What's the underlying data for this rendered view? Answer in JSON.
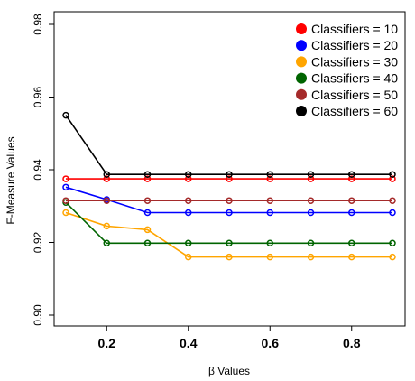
{
  "chart_data": {
    "type": "line",
    "title": "",
    "xlabel": "β Values",
    "ylabel": "F-Measure Values",
    "xlim": [
      0.1,
      0.9
    ],
    "ylim": [
      0.9,
      0.98
    ],
    "x": [
      0.1,
      0.2,
      0.3,
      0.4,
      0.5,
      0.6,
      0.7,
      0.8,
      0.9
    ],
    "x_ticks": [
      0.2,
      0.4,
      0.6,
      0.8
    ],
    "x_tick_labels": [
      "0.2",
      "0.4",
      "0.6",
      "0.8"
    ],
    "y_ticks": [
      0.9,
      0.92,
      0.94,
      0.96,
      0.98
    ],
    "y_tick_labels": [
      "0.90",
      "0.92",
      "0.94",
      "0.96",
      "0.98"
    ],
    "grid": false,
    "legend_position": "top-right",
    "series": [
      {
        "name": "Classifiers = 10",
        "color": "#ff0000",
        "values": [
          0.9375,
          0.9375,
          0.9375,
          0.9375,
          0.9375,
          0.9375,
          0.9375,
          0.9375,
          0.9375
        ]
      },
      {
        "name": "Classifiers = 20",
        "color": "#0000ff",
        "values": [
          0.9352,
          0.9318,
          0.9282,
          0.9282,
          0.9282,
          0.9282,
          0.9282,
          0.9282,
          0.9282
        ]
      },
      {
        "name": "Classifiers = 30",
        "color": "#ffa500",
        "values": [
          0.9282,
          0.9245,
          0.9235,
          0.916,
          0.916,
          0.916,
          0.916,
          0.916,
          0.916
        ]
      },
      {
        "name": "Classifiers = 40",
        "color": "#006400",
        "values": [
          0.931,
          0.9198,
          0.9198,
          0.9198,
          0.9198,
          0.9198,
          0.9198,
          0.9198,
          0.9198
        ]
      },
      {
        "name": "Classifiers = 50",
        "color": "#a52a2a",
        "values": [
          0.9315,
          0.9315,
          0.9315,
          0.9315,
          0.9315,
          0.9315,
          0.9315,
          0.9315,
          0.9315
        ]
      },
      {
        "name": "Classifiers = 60",
        "color": "#000000",
        "values": [
          0.955,
          0.9387,
          0.9387,
          0.9387,
          0.9387,
          0.9387,
          0.9387,
          0.9387,
          0.9387
        ]
      }
    ]
  }
}
